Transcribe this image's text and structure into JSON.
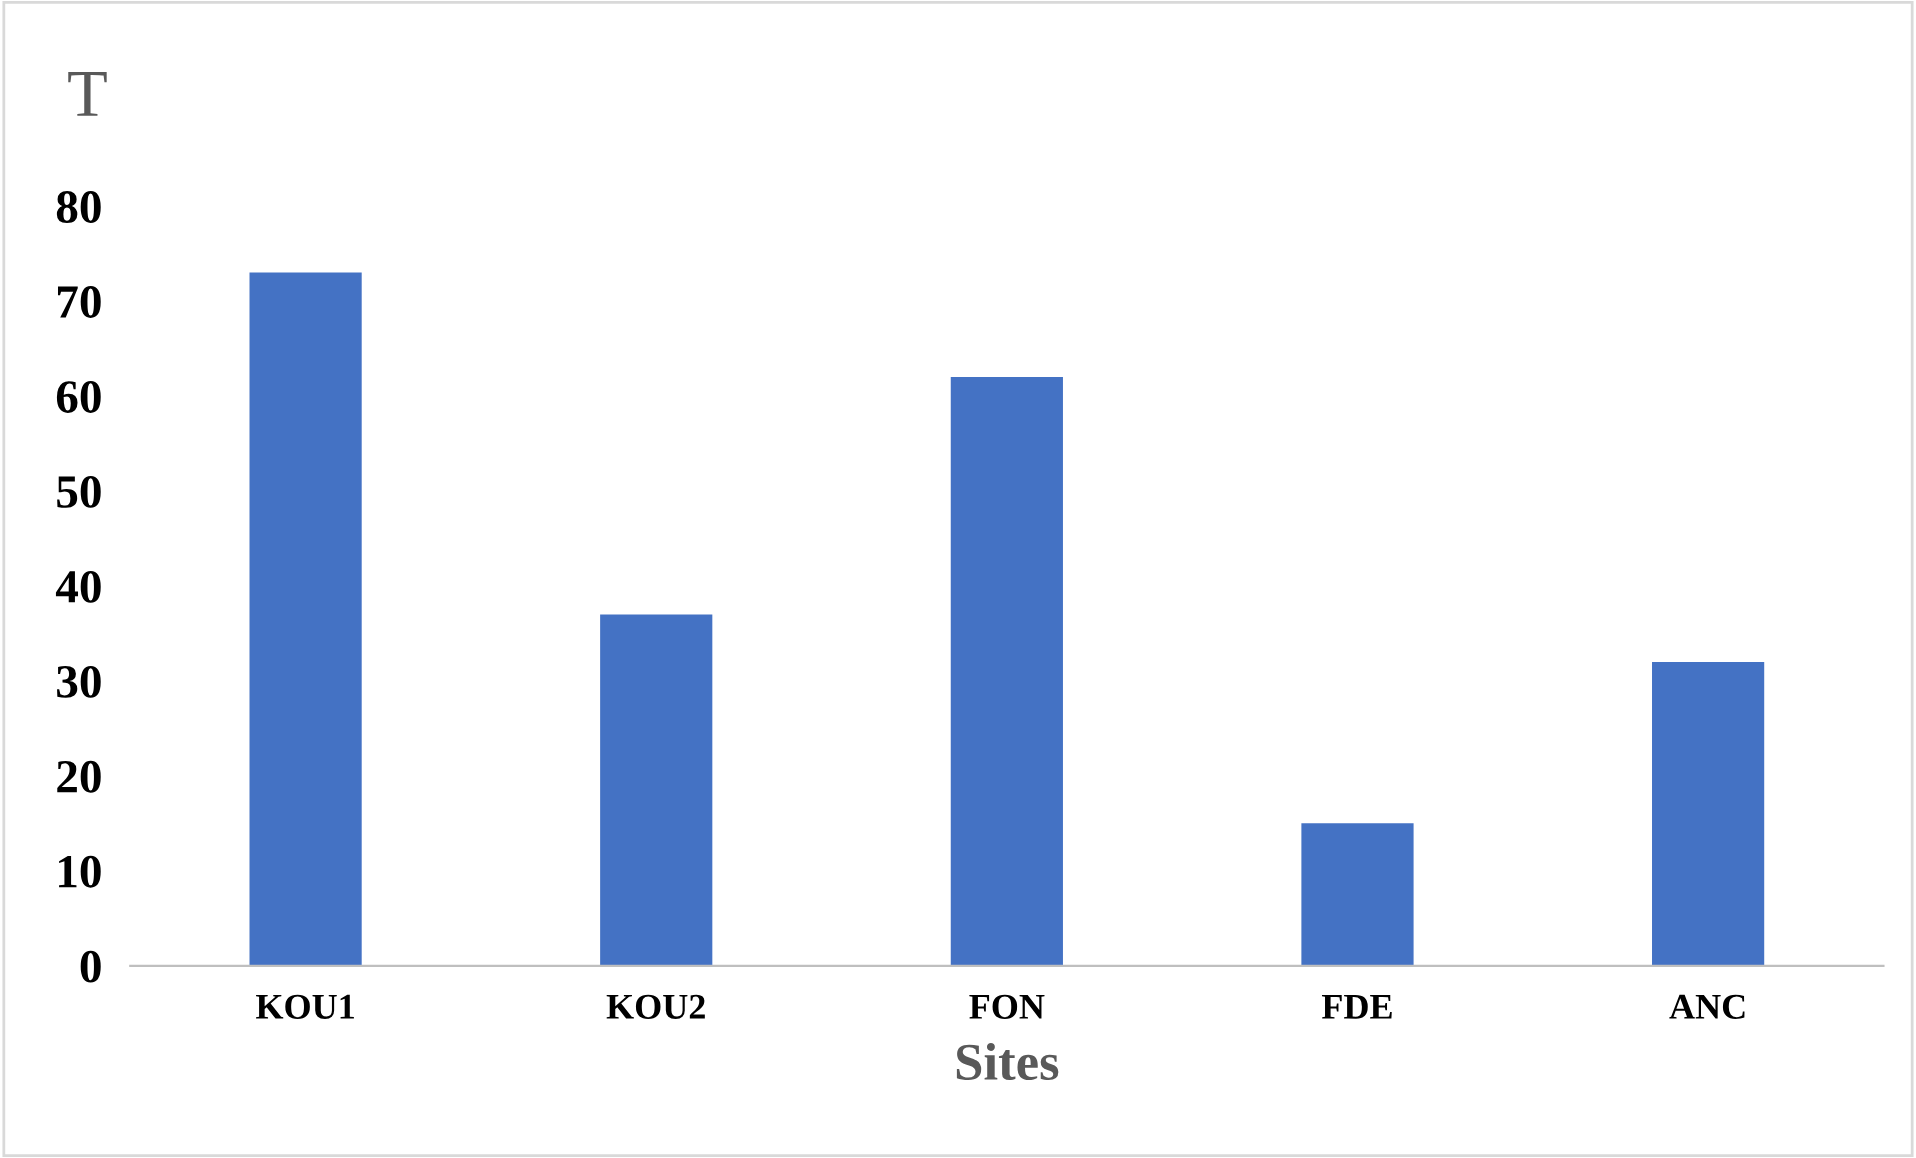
{
  "chart_data": {
    "type": "bar",
    "ylabel": "T",
    "xlabel": "Sites",
    "categories": [
      "KOU1",
      "KOU2",
      "FON",
      "FDE",
      "ANC"
    ],
    "values": [
      73,
      37,
      62,
      15,
      32
    ],
    "color": "#4472c4",
    "ylim": [
      0,
      80
    ],
    "yticks": [
      0,
      10,
      20,
      30,
      40,
      50,
      60,
      70,
      80
    ],
    "grid": false,
    "legend": false
  }
}
